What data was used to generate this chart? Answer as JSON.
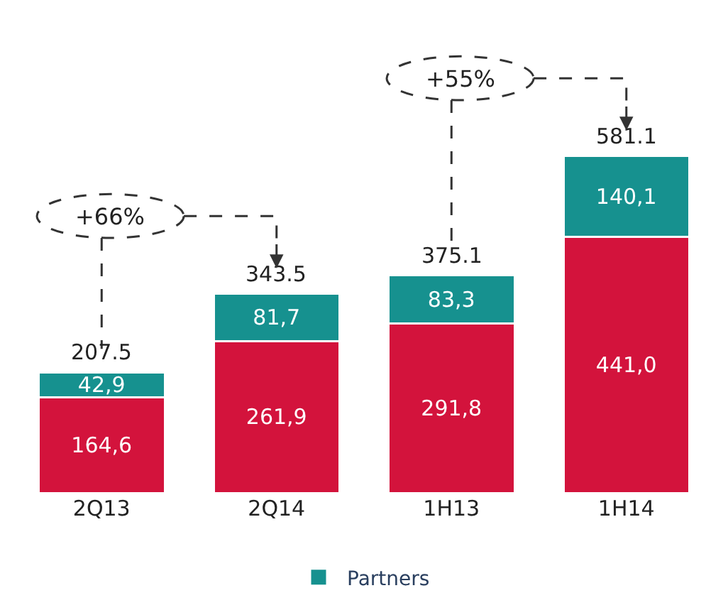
{
  "chart_data": {
    "type": "bar",
    "stacked": true,
    "categories": [
      "2Q13",
      "2Q14",
      "1H13",
      "1H14"
    ],
    "series": [
      {
        "color": "#d3133c",
        "values": [
          164.6,
          261.9,
          291.8,
          441.0
        ],
        "value_labels": [
          "164,6",
          "261,9",
          "291,8",
          "441,0"
        ]
      },
      {
        "name": "Partners",
        "color": "#16918f",
        "values": [
          42.9,
          81.7,
          83.3,
          140.1
        ],
        "value_labels": [
          "42,9",
          "81,7",
          "83,3",
          "140,1"
        ]
      }
    ],
    "totals": [
      "207.5",
      "343.5",
      "375.1",
      "581.1"
    ],
    "annotations": [
      "+66%",
      "+55%"
    ],
    "legend": "bottom"
  }
}
